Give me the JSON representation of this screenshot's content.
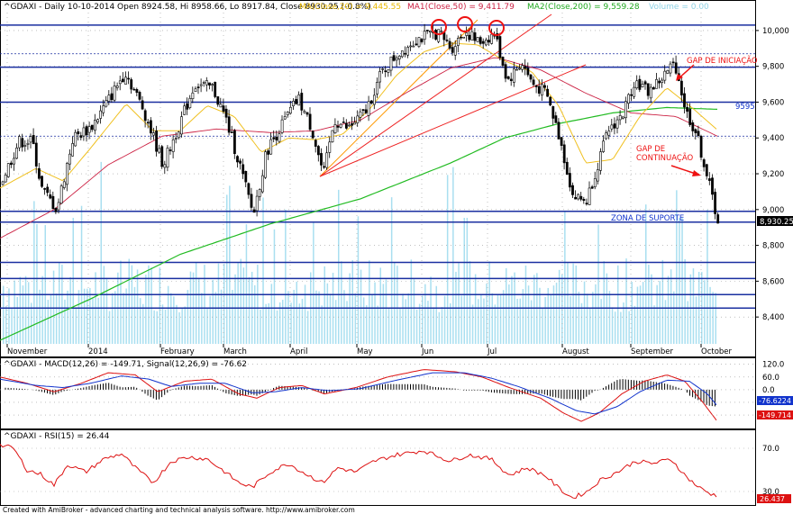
{
  "chart_data": [
    {
      "type": "candlestick",
      "panel": "price",
      "title": "^GDAXI - Daily 10-10-2014 Open 8924.58, Hi 8958.66, Lo 8917.84, Close 8930.25 (-0.8%)",
      "indicators_legend": [
        {
          "label": "MA(Close,20) = 9,445.55",
          "color": "#e8b800"
        },
        {
          "label": "MA1(Close,50) = 9,411.79",
          "color": "#cc2244"
        },
        {
          "label": "MA2(Close,200) = 9,559.28",
          "color": "#22aa22"
        },
        {
          "label": "Volume = 0.00",
          "color": "#8fd3e6"
        }
      ],
      "ylim": [
        8250,
        10100
      ],
      "y_ticks": [
        "10,000",
        "9,800",
        "9,600",
        "9,400",
        "9,200",
        "9,000",
        "8,800",
        "8,600",
        "8,400"
      ],
      "y_tick_values": [
        10000,
        9800,
        9600,
        9400,
        9200,
        9000,
        8800,
        8600,
        8400
      ],
      "x_labels": [
        "November",
        "2014",
        "February",
        "March",
        "April",
        "May",
        "Jun",
        "Jul",
        "August",
        "September",
        "October"
      ],
      "last_close_label": "8,930.25",
      "horizontal_levels": [
        10030,
        9795,
        9600,
        8990,
        8930,
        8705,
        8615,
        8525,
        8450
      ],
      "dashed_levels": [
        9870,
        9410
      ],
      "level_label": "9595",
      "annotations": {
        "gap_iniciacao": "GAP DE INICIAÇÃO",
        "gap_continuacao_1": "GAP DE",
        "gap_continuacao_2": "CONTINUAÇÃO",
        "zona_suporte": "ZONA DE SUPORTE"
      },
      "price_anchors": [
        {
          "x": 0,
          "y": 9150
        },
        {
          "x": 20,
          "y": 9380
        },
        {
          "x": 35,
          "y": 9380
        },
        {
          "x": 45,
          "y": 9120
        },
        {
          "x": 62,
          "y": 9000
        },
        {
          "x": 80,
          "y": 9400
        },
        {
          "x": 100,
          "y": 9460
        },
        {
          "x": 118,
          "y": 9600
        },
        {
          "x": 138,
          "y": 9770
        },
        {
          "x": 158,
          "y": 9560
        },
        {
          "x": 180,
          "y": 9250
        },
        {
          "x": 200,
          "y": 9500
        },
        {
          "x": 215,
          "y": 9700
        },
        {
          "x": 235,
          "y": 9680
        },
        {
          "x": 250,
          "y": 9500
        },
        {
          "x": 265,
          "y": 9250
        },
        {
          "x": 280,
          "y": 8970
        },
        {
          "x": 295,
          "y": 9330
        },
        {
          "x": 315,
          "y": 9500
        },
        {
          "x": 330,
          "y": 9620
        },
        {
          "x": 345,
          "y": 9450
        },
        {
          "x": 358,
          "y": 9190
        },
        {
          "x": 370,
          "y": 9500
        },
        {
          "x": 385,
          "y": 9450
        },
        {
          "x": 405,
          "y": 9550
        },
        {
          "x": 422,
          "y": 9760
        },
        {
          "x": 440,
          "y": 9870
        },
        {
          "x": 460,
          "y": 9950
        },
        {
          "x": 485,
          "y": 9990
        },
        {
          "x": 500,
          "y": 9900
        },
        {
          "x": 515,
          "y": 10000
        },
        {
          "x": 530,
          "y": 9930
        },
        {
          "x": 548,
          "y": 9980
        },
        {
          "x": 562,
          "y": 9720
        },
        {
          "x": 578,
          "y": 9820
        },
        {
          "x": 590,
          "y": 9700
        },
        {
          "x": 605,
          "y": 9650
        },
        {
          "x": 620,
          "y": 9400
        },
        {
          "x": 635,
          "y": 9070
        },
        {
          "x": 650,
          "y": 9050
        },
        {
          "x": 662,
          "y": 9250
        },
        {
          "x": 675,
          "y": 9450
        },
        {
          "x": 690,
          "y": 9530
        },
        {
          "x": 703,
          "y": 9720
        },
        {
          "x": 718,
          "y": 9660
        },
        {
          "x": 733,
          "y": 9730
        },
        {
          "x": 748,
          "y": 9820
        },
        {
          "x": 760,
          "y": 9550
        },
        {
          "x": 772,
          "y": 9420
        },
        {
          "x": 783,
          "y": 9200
        },
        {
          "x": 796,
          "y": 8930
        }
      ],
      "ma20_anchors": [
        {
          "x": 0,
          "y": 9120
        },
        {
          "x": 40,
          "y": 9230
        },
        {
          "x": 70,
          "y": 9160
        },
        {
          "x": 100,
          "y": 9340
        },
        {
          "x": 140,
          "y": 9590
        },
        {
          "x": 170,
          "y": 9440
        },
        {
          "x": 200,
          "y": 9440
        },
        {
          "x": 230,
          "y": 9580
        },
        {
          "x": 260,
          "y": 9520
        },
        {
          "x": 290,
          "y": 9320
        },
        {
          "x": 320,
          "y": 9400
        },
        {
          "x": 350,
          "y": 9390
        },
        {
          "x": 380,
          "y": 9420
        },
        {
          "x": 410,
          "y": 9560
        },
        {
          "x": 440,
          "y": 9750
        },
        {
          "x": 470,
          "y": 9880
        },
        {
          "x": 500,
          "y": 9930
        },
        {
          "x": 530,
          "y": 9920
        },
        {
          "x": 560,
          "y": 9830
        },
        {
          "x": 590,
          "y": 9770
        },
        {
          "x": 620,
          "y": 9580
        },
        {
          "x": 650,
          "y": 9260
        },
        {
          "x": 680,
          "y": 9280
        },
        {
          "x": 710,
          "y": 9520
        },
        {
          "x": 740,
          "y": 9680
        },
        {
          "x": 770,
          "y": 9560
        },
        {
          "x": 796,
          "y": 9445
        }
      ],
      "ma50_anchors": [
        {
          "x": 0,
          "y": 8840
        },
        {
          "x": 60,
          "y": 9000
        },
        {
          "x": 120,
          "y": 9250
        },
        {
          "x": 180,
          "y": 9410
        },
        {
          "x": 240,
          "y": 9450
        },
        {
          "x": 300,
          "y": 9430
        },
        {
          "x": 350,
          "y": 9440
        },
        {
          "x": 400,
          "y": 9500
        },
        {
          "x": 450,
          "y": 9650
        },
        {
          "x": 500,
          "y": 9790
        },
        {
          "x": 550,
          "y": 9850
        },
        {
          "x": 600,
          "y": 9780
        },
        {
          "x": 650,
          "y": 9650
        },
        {
          "x": 700,
          "y": 9540
        },
        {
          "x": 750,
          "y": 9520
        },
        {
          "x": 796,
          "y": 9410
        }
      ],
      "ma200_anchors": [
        {
          "x": 0,
          "y": 8270
        },
        {
          "x": 100,
          "y": 8500
        },
        {
          "x": 200,
          "y": 8750
        },
        {
          "x": 300,
          "y": 8920
        },
        {
          "x": 400,
          "y": 9060
        },
        {
          "x": 500,
          "y": 9260
        },
        {
          "x": 560,
          "y": 9400
        },
        {
          "x": 620,
          "y": 9480
        },
        {
          "x": 680,
          "y": 9540
        },
        {
          "x": 740,
          "y": 9570
        },
        {
          "x": 796,
          "y": 9560
        }
      ]
    },
    {
      "type": "line",
      "panel": "macd",
      "title": "^GDAXI - MACD(12,26) = -149.71, Signal(12,26,9) = -76.62",
      "series": [
        {
          "name": "MACD(12,26)",
          "color": "#dd1111"
        },
        {
          "name": "Signal(12,26,9)",
          "color": "#1133cc"
        }
      ],
      "ylim": [
        -175,
        140
      ],
      "y_ticks": [
        "120.0",
        "60.0",
        "0.0",
        "-60.0",
        "-120.0"
      ],
      "y_tick_values": [
        120,
        60,
        0,
        -60,
        -120
      ],
      "signal_label": "-76.6224",
      "macd_label": "-149.714",
      "macd_anchors": [
        {
          "x": 0,
          "y": 60
        },
        {
          "x": 30,
          "y": 30
        },
        {
          "x": 60,
          "y": -10
        },
        {
          "x": 90,
          "y": 30
        },
        {
          "x": 120,
          "y": 80
        },
        {
          "x": 150,
          "y": 70
        },
        {
          "x": 175,
          "y": -10
        },
        {
          "x": 205,
          "y": 40
        },
        {
          "x": 235,
          "y": 50
        },
        {
          "x": 265,
          "y": -20
        },
        {
          "x": 285,
          "y": -40
        },
        {
          "x": 310,
          "y": 10
        },
        {
          "x": 335,
          "y": 20
        },
        {
          "x": 360,
          "y": -20
        },
        {
          "x": 395,
          "y": 10
        },
        {
          "x": 430,
          "y": 60
        },
        {
          "x": 470,
          "y": 95
        },
        {
          "x": 505,
          "y": 85
        },
        {
          "x": 535,
          "y": 60
        },
        {
          "x": 565,
          "y": 10
        },
        {
          "x": 600,
          "y": -40
        },
        {
          "x": 625,
          "y": -110
        },
        {
          "x": 645,
          "y": -150
        },
        {
          "x": 665,
          "y": -110
        },
        {
          "x": 690,
          "y": -20
        },
        {
          "x": 715,
          "y": 40
        },
        {
          "x": 740,
          "y": 70
        },
        {
          "x": 760,
          "y": 40
        },
        {
          "x": 780,
          "y": -60
        },
        {
          "x": 796,
          "y": -150
        }
      ],
      "signal_anchors": [
        {
          "x": 0,
          "y": 50
        },
        {
          "x": 40,
          "y": 20
        },
        {
          "x": 70,
          "y": 10
        },
        {
          "x": 100,
          "y": 30
        },
        {
          "x": 135,
          "y": 65
        },
        {
          "x": 165,
          "y": 50
        },
        {
          "x": 190,
          "y": 15
        },
        {
          "x": 220,
          "y": 30
        },
        {
          "x": 250,
          "y": 30
        },
        {
          "x": 280,
          "y": -15
        },
        {
          "x": 305,
          "y": -10
        },
        {
          "x": 335,
          "y": 10
        },
        {
          "x": 365,
          "y": -5
        },
        {
          "x": 400,
          "y": 5
        },
        {
          "x": 440,
          "y": 45
        },
        {
          "x": 480,
          "y": 80
        },
        {
          "x": 515,
          "y": 80
        },
        {
          "x": 545,
          "y": 55
        },
        {
          "x": 575,
          "y": 15
        },
        {
          "x": 610,
          "y": -40
        },
        {
          "x": 640,
          "y": -100
        },
        {
          "x": 660,
          "y": -115
        },
        {
          "x": 685,
          "y": -80
        },
        {
          "x": 710,
          "y": -10
        },
        {
          "x": 740,
          "y": 45
        },
        {
          "x": 765,
          "y": 40
        },
        {
          "x": 785,
          "y": -20
        },
        {
          "x": 796,
          "y": -77
        }
      ]
    },
    {
      "type": "line",
      "panel": "rsi",
      "title": "^GDAXI - RSI(15) = 26.44",
      "series": [
        {
          "name": "RSI(15)",
          "color": "#dd1111"
        }
      ],
      "ylim": [
        20,
        85
      ],
      "y_ticks": [
        "70.0",
        "30.0"
      ],
      "y_tick_values": [
        70,
        30
      ],
      "rsi_label": "26.437",
      "rsi_anchors": [
        {
          "x": 0,
          "y": 73
        },
        {
          "x": 15,
          "y": 70
        },
        {
          "x": 30,
          "y": 50
        },
        {
          "x": 45,
          "y": 46
        },
        {
          "x": 60,
          "y": 36
        },
        {
          "x": 75,
          "y": 55
        },
        {
          "x": 95,
          "y": 48
        },
        {
          "x": 115,
          "y": 60
        },
        {
          "x": 135,
          "y": 65
        },
        {
          "x": 150,
          "y": 52
        },
        {
          "x": 170,
          "y": 38
        },
        {
          "x": 190,
          "y": 58
        },
        {
          "x": 210,
          "y": 62
        },
        {
          "x": 230,
          "y": 60
        },
        {
          "x": 250,
          "y": 48
        },
        {
          "x": 265,
          "y": 38
        },
        {
          "x": 280,
          "y": 34
        },
        {
          "x": 300,
          "y": 48
        },
        {
          "x": 320,
          "y": 56
        },
        {
          "x": 340,
          "y": 46
        },
        {
          "x": 358,
          "y": 38
        },
        {
          "x": 375,
          "y": 52
        },
        {
          "x": 395,
          "y": 48
        },
        {
          "x": 415,
          "y": 58
        },
        {
          "x": 440,
          "y": 64
        },
        {
          "x": 470,
          "y": 68
        },
        {
          "x": 500,
          "y": 58
        },
        {
          "x": 520,
          "y": 64
        },
        {
          "x": 545,
          "y": 60
        },
        {
          "x": 565,
          "y": 45
        },
        {
          "x": 585,
          "y": 52
        },
        {
          "x": 605,
          "y": 45
        },
        {
          "x": 620,
          "y": 33
        },
        {
          "x": 635,
          "y": 24
        },
        {
          "x": 652,
          "y": 30
        },
        {
          "x": 665,
          "y": 40
        },
        {
          "x": 685,
          "y": 48
        },
        {
          "x": 705,
          "y": 58
        },
        {
          "x": 725,
          "y": 56
        },
        {
          "x": 745,
          "y": 60
        },
        {
          "x": 760,
          "y": 45
        },
        {
          "x": 775,
          "y": 34
        },
        {
          "x": 788,
          "y": 28
        },
        {
          "x": 796,
          "y": 26
        }
      ]
    }
  ],
  "footer": {
    "credit": "Created with AmiBroker - advanced charting and technical analysis software. http://www.amibroker.com"
  }
}
